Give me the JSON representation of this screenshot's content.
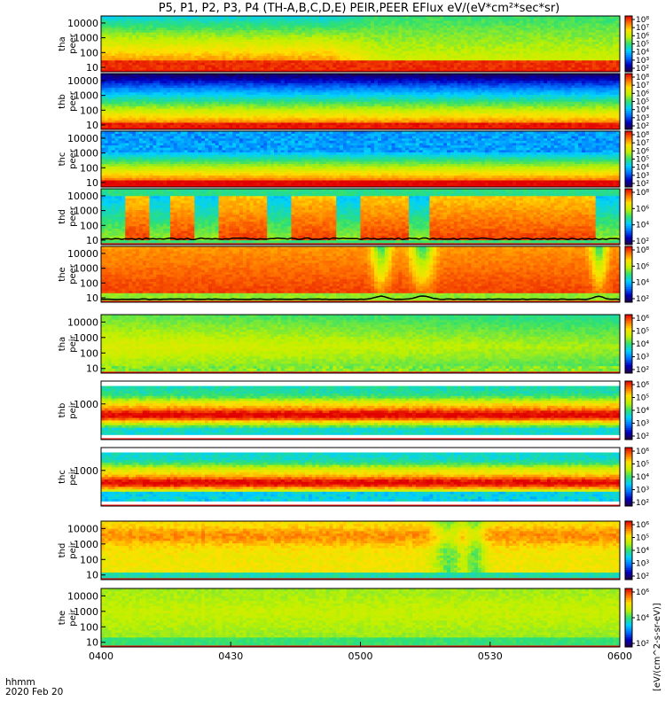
{
  "title": "P5, P1, P2, P3, P4 (TH-A,B,C,D,E) PEIR,PEER EFlux eV/(eV*cm²*sec*sr)",
  "footer": {
    "time_label": "hhmm",
    "date_label": "2020 Feb 20"
  },
  "colorbar_label": "[eV/(cm^2-s-sr-eV)]",
  "colors": {
    "colormap": [
      "#200040",
      "#0000c0",
      "#0070ff",
      "#00d0ff",
      "#30e070",
      "#c0f000",
      "#ffe000",
      "#ff7000",
      "#e00000"
    ],
    "gap_fill": "#ffffff",
    "stripe": "#ff0000",
    "trace": "#000000"
  },
  "chart_data": {
    "type": "heatmap",
    "x_axis": {
      "tick_labels": [
        "0400",
        "0430",
        "0500",
        "0530",
        "0600"
      ],
      "range": [
        "0400",
        "0600"
      ]
    },
    "panels": [
      {
        "name": "tha peer",
        "y_ticks": [
          "10000",
          "1000",
          "100",
          "10"
        ],
        "yscale": "log",
        "ylim": [
          5,
          30000
        ],
        "cbar_ticks": [
          "10⁸",
          "10⁷",
          "10⁶",
          "10⁵",
          "10⁴",
          "10³",
          "10²"
        ],
        "profile": "tha_peer"
      },
      {
        "name": "thb peer",
        "y_ticks": [
          "10000",
          "1000",
          "100",
          "10"
        ],
        "yscale": "log",
        "ylim": [
          5,
          30000
        ],
        "cbar_ticks": [
          "10⁸",
          "10⁷",
          "10⁶",
          "10⁵",
          "10⁴",
          "10³",
          "10²"
        ],
        "profile": "thb_peer"
      },
      {
        "name": "thc peer",
        "y_ticks": [
          "10000",
          "1000",
          "100",
          "10"
        ],
        "yscale": "log",
        "ylim": [
          5,
          30000
        ],
        "cbar_ticks": [
          "10⁸",
          "10⁷",
          "10⁶",
          "10⁵",
          "10⁴",
          "10³",
          "10²"
        ],
        "profile": "thc_peer"
      },
      {
        "name": "thd peer",
        "y_ticks": [
          "10000",
          "1000",
          "100",
          "10"
        ],
        "yscale": "log",
        "ylim": [
          5,
          30000
        ],
        "cbar_ticks": [
          "10⁸",
          "10⁶",
          "10⁴",
          "10²"
        ],
        "profile": "thd_peer"
      },
      {
        "name": "the peer",
        "y_ticks": [
          "10000",
          "1000",
          "100",
          "10"
        ],
        "yscale": "log",
        "ylim": [
          5,
          30000
        ],
        "cbar_ticks": [
          "10⁸",
          "10⁶",
          "10⁴",
          "10²"
        ],
        "profile": "the_peer"
      },
      {
        "name": "tha peir",
        "y_ticks": [
          "10000",
          "1000",
          "100",
          "10"
        ],
        "yscale": "log",
        "ylim": [
          5,
          30000
        ],
        "cbar_ticks": [
          "10⁶",
          "10⁵",
          "10⁴",
          "10³",
          "10²"
        ],
        "profile": "tha_peir"
      },
      {
        "name": "thb peir",
        "y_ticks": [
          "1000"
        ],
        "yscale": "log",
        "ylim": [
          5,
          30000
        ],
        "cbar_ticks": [
          "10⁶",
          "10⁵",
          "10⁴",
          "10³",
          "10²"
        ],
        "profile": "thb_peir"
      },
      {
        "name": "thc peir",
        "y_ticks": [
          "1000"
        ],
        "yscale": "log",
        "ylim": [
          5,
          30000
        ],
        "cbar_ticks": [
          "10⁶",
          "10⁵",
          "10⁴",
          "10³",
          "10²"
        ],
        "profile": "thc_peir"
      },
      {
        "name": "thd peir",
        "y_ticks": [
          "10000",
          "1000",
          "100",
          "10"
        ],
        "yscale": "log",
        "ylim": [
          5,
          30000
        ],
        "cbar_ticks": [
          "10⁶",
          "10⁵",
          "10⁴",
          "10³",
          "10²"
        ],
        "profile": "thd_peir"
      },
      {
        "name": "the peir",
        "y_ticks": [
          "10000",
          "1000",
          "100",
          "10"
        ],
        "yscale": "log",
        "ylim": [
          5,
          30000
        ],
        "cbar_ticks": [
          "10⁶",
          "10⁴",
          "10²"
        ],
        "profile": "the_peir"
      }
    ]
  }
}
